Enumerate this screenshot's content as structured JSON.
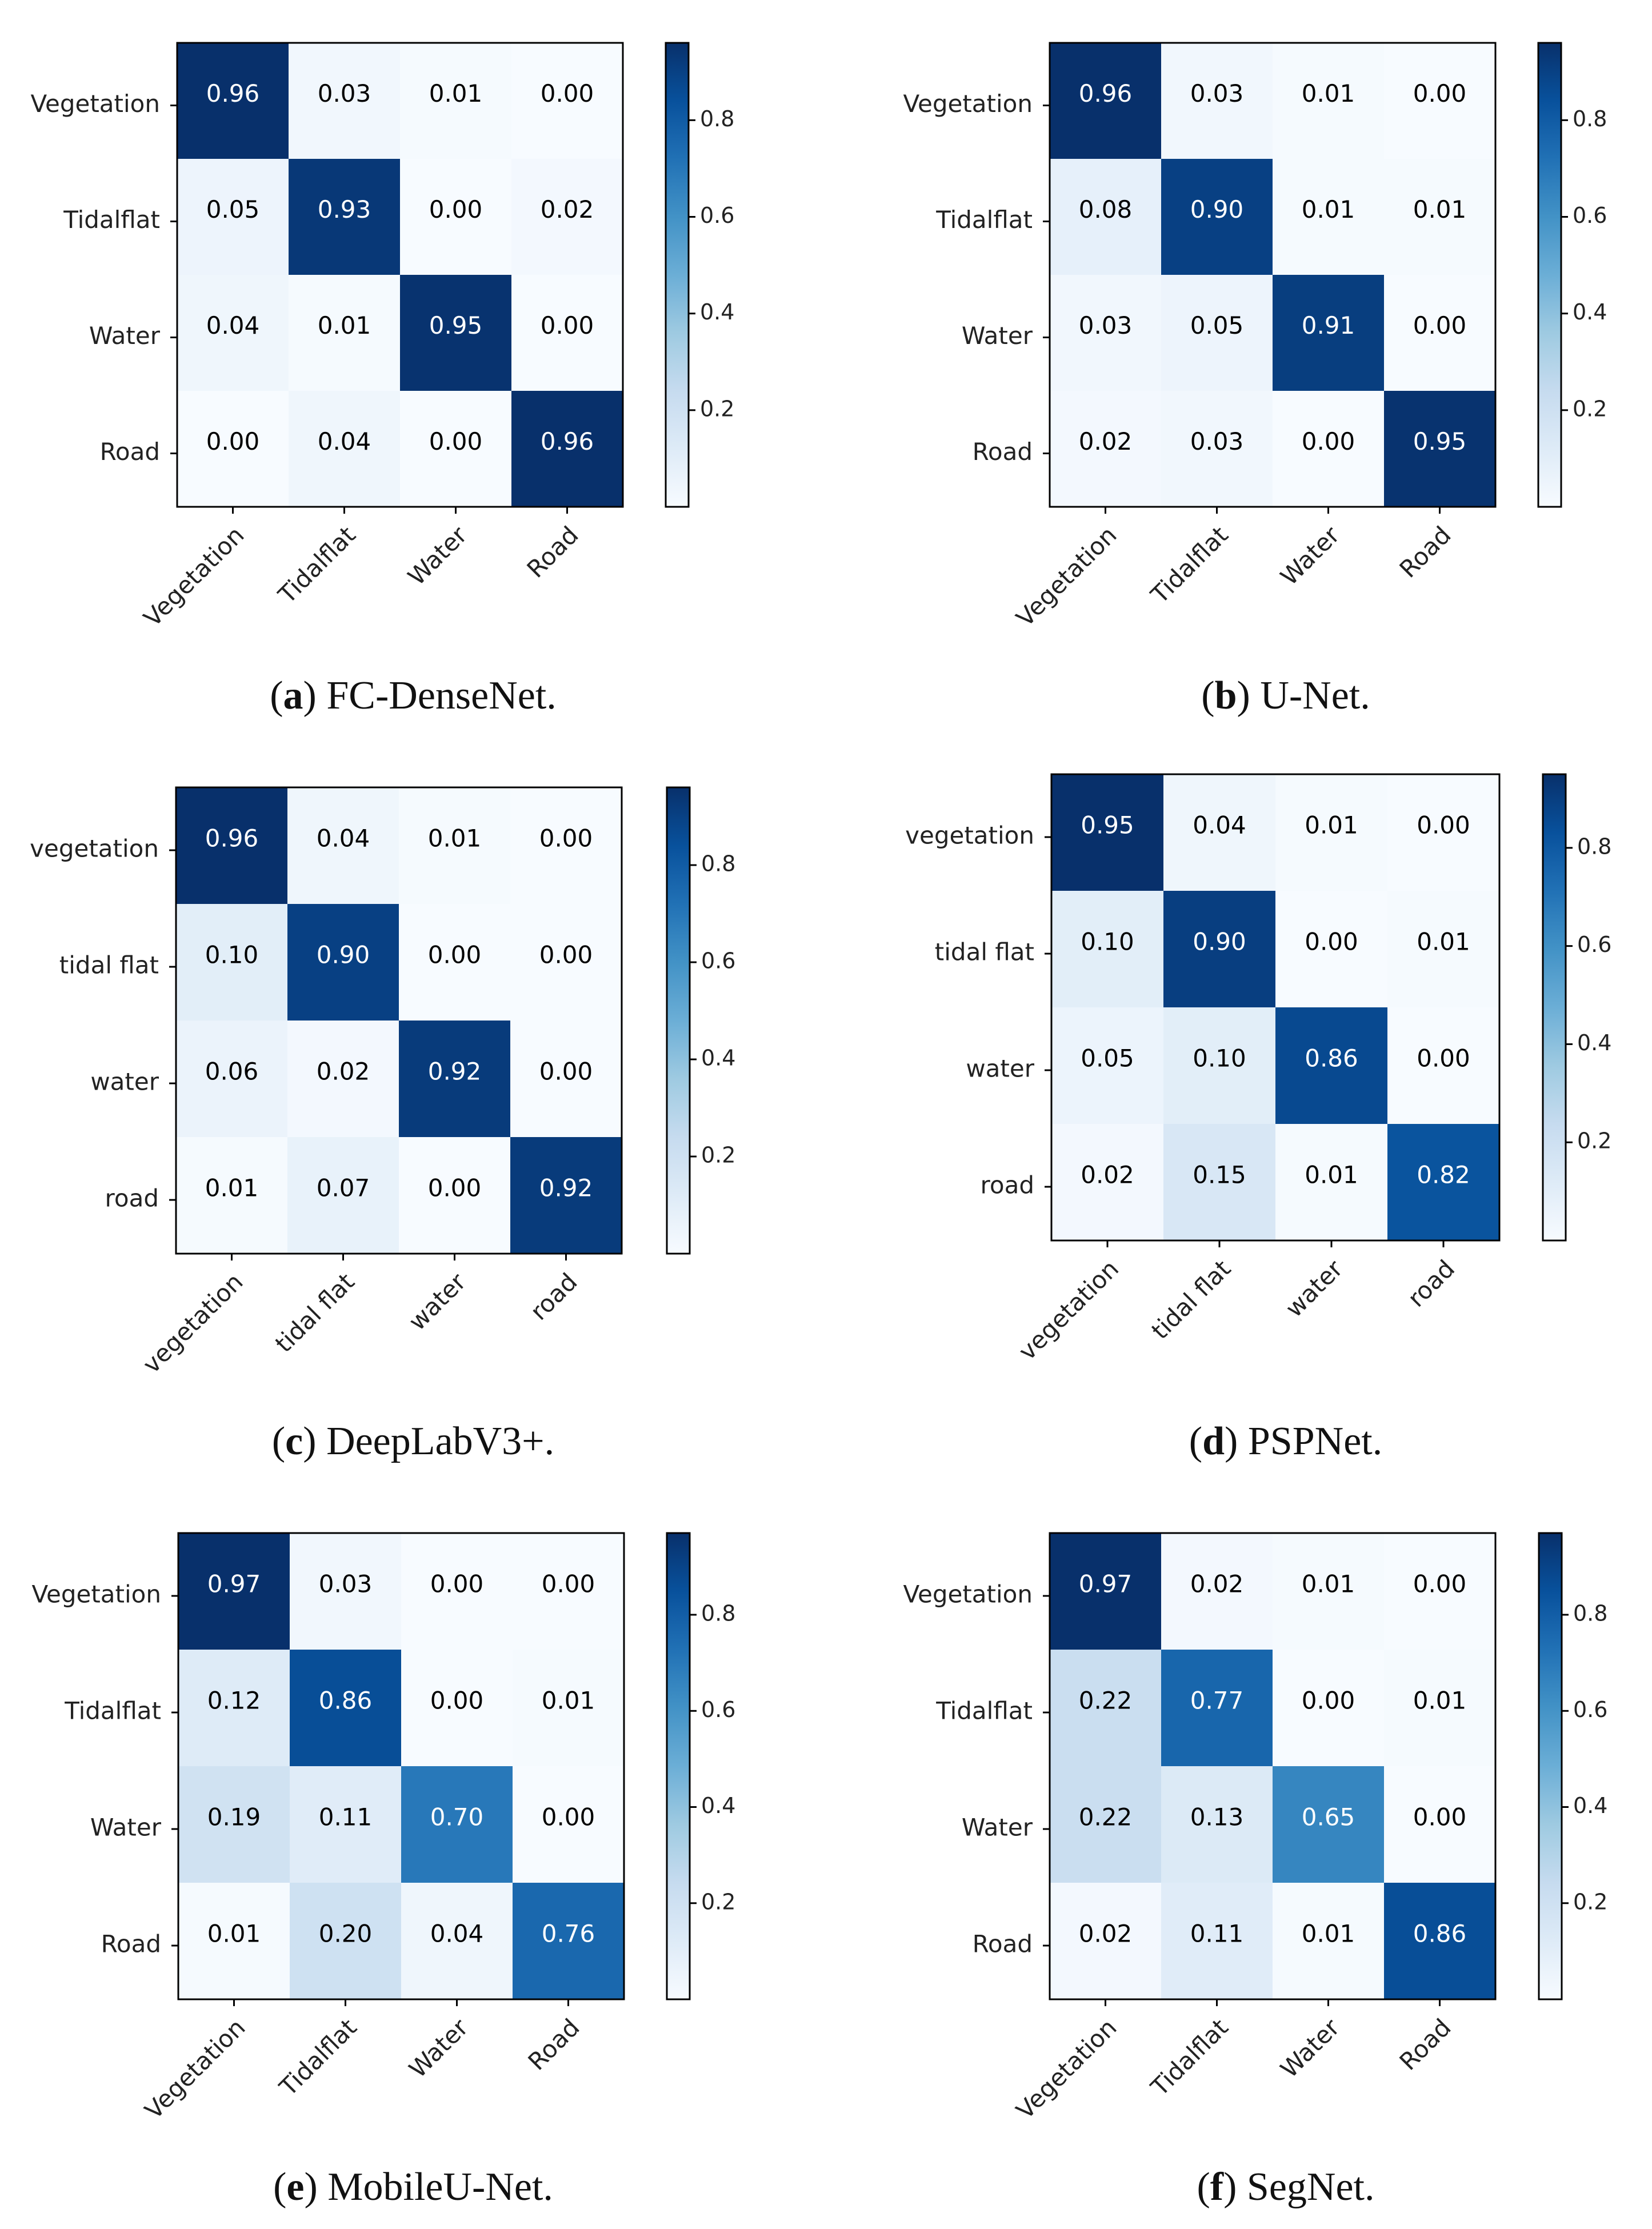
{
  "figure": {
    "colormap": "Blues",
    "colors": {
      "low": "#f7fbff",
      "high": "#08306b",
      "text_dark": "#000000",
      "text_light": "#ffffff"
    }
  },
  "chart_data": [
    {
      "type": "heatmap",
      "panel_letter": "a",
      "model": "FC-DenseNet.",
      "rows": [
        "Vegetation",
        "Tidalflat",
        "Water",
        "Road"
      ],
      "cols": [
        "Vegetation",
        "Tidalflat",
        "Water",
        "Road"
      ],
      "values": [
        [
          0.96,
          0.03,
          0.01,
          0.0
        ],
        [
          0.05,
          0.93,
          0.0,
          0.02
        ],
        [
          0.04,
          0.01,
          0.95,
          0.0
        ],
        [
          0.0,
          0.04,
          0.0,
          0.96
        ]
      ],
      "colorbar_ticks": [
        0.2,
        0.4,
        0.6,
        0.8
      ],
      "colorbar_range": [
        0.0,
        0.96
      ]
    },
    {
      "type": "heatmap",
      "panel_letter": "b",
      "model": "U-Net.",
      "rows": [
        "Vegetation",
        "Tidalflat",
        "Water",
        "Road"
      ],
      "cols": [
        "Vegetation",
        "Tidalflat",
        "Water",
        "Road"
      ],
      "values": [
        [
          0.96,
          0.03,
          0.01,
          0.0
        ],
        [
          0.08,
          0.9,
          0.01,
          0.01
        ],
        [
          0.03,
          0.05,
          0.91,
          0.0
        ],
        [
          0.02,
          0.03,
          0.0,
          0.95
        ]
      ],
      "colorbar_ticks": [
        0.2,
        0.4,
        0.6,
        0.8
      ],
      "colorbar_range": [
        0.0,
        0.96
      ]
    },
    {
      "type": "heatmap",
      "panel_letter": "c",
      "model": "DeepLabV3+.",
      "rows": [
        "vegetation",
        "tidal flat",
        "water",
        "road"
      ],
      "cols": [
        "vegetation",
        "tidal flat",
        "water",
        "road"
      ],
      "values": [
        [
          0.96,
          0.04,
          0.01,
          0.0
        ],
        [
          0.1,
          0.9,
          0.0,
          0.0
        ],
        [
          0.06,
          0.02,
          0.92,
          0.0
        ],
        [
          0.01,
          0.07,
          0.0,
          0.92
        ]
      ],
      "colorbar_ticks": [
        0.2,
        0.4,
        0.6,
        0.8
      ],
      "colorbar_range": [
        0.0,
        0.96
      ]
    },
    {
      "type": "heatmap",
      "panel_letter": "d",
      "model": "PSPNet.",
      "rows": [
        "vegetation",
        "tidal flat",
        "water",
        "road"
      ],
      "cols": [
        "vegetation",
        "tidal flat",
        "water",
        "road"
      ],
      "values": [
        [
          0.95,
          0.04,
          0.01,
          0.0
        ],
        [
          0.1,
          0.9,
          0.0,
          0.01
        ],
        [
          0.05,
          0.1,
          0.86,
          0.0
        ],
        [
          0.02,
          0.15,
          0.01,
          0.82
        ]
      ],
      "colorbar_ticks": [
        0.2,
        0.4,
        0.6,
        0.8
      ],
      "colorbar_range": [
        0.0,
        0.95
      ]
    },
    {
      "type": "heatmap",
      "panel_letter": "e",
      "model": "MobileU-Net.",
      "rows": [
        "Vegetation",
        "Tidalflat",
        "Water",
        "Road"
      ],
      "cols": [
        "Vegetation",
        "Tidalflat",
        "Water",
        "Road"
      ],
      "values": [
        [
          0.97,
          0.03,
          0.0,
          0.0
        ],
        [
          0.12,
          0.86,
          0.0,
          0.01
        ],
        [
          0.19,
          0.11,
          0.7,
          0.0
        ],
        [
          0.01,
          0.2,
          0.04,
          0.76
        ]
      ],
      "colorbar_ticks": [
        0.2,
        0.4,
        0.6,
        0.8
      ],
      "colorbar_range": [
        0.0,
        0.97
      ]
    },
    {
      "type": "heatmap",
      "panel_letter": "f",
      "model": "SegNet.",
      "rows": [
        "Vegetation",
        "Tidalflat",
        "Water",
        "Road"
      ],
      "cols": [
        "Vegetation",
        "Tidalflat",
        "Water",
        "Road"
      ],
      "values": [
        [
          0.97,
          0.02,
          0.01,
          0.0
        ],
        [
          0.22,
          0.77,
          0.0,
          0.01
        ],
        [
          0.22,
          0.13,
          0.65,
          0.0
        ],
        [
          0.02,
          0.11,
          0.01,
          0.86
        ]
      ],
      "colorbar_ticks": [
        0.2,
        0.4,
        0.6,
        0.8
      ],
      "colorbar_range": [
        0.0,
        0.97
      ]
    }
  ]
}
